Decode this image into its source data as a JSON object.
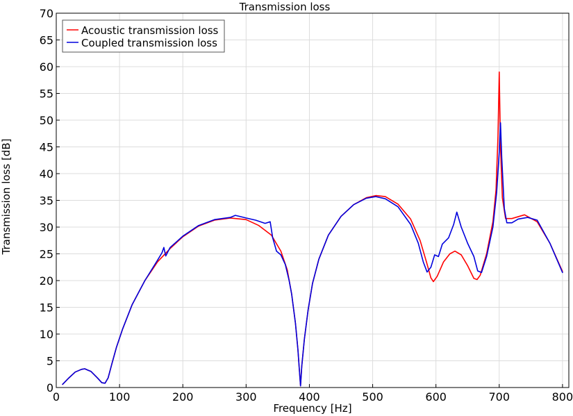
{
  "chart_data": {
    "type": "line",
    "title": "Transmission loss",
    "xlabel": "Frequency [Hz]",
    "ylabel": "Transmission loss [dB]",
    "xlim": [
      0,
      810
    ],
    "ylim": [
      0,
      70
    ],
    "xticks": [
      0,
      100,
      200,
      300,
      400,
      500,
      600,
      700,
      800
    ],
    "yticks": [
      0,
      5,
      10,
      15,
      20,
      25,
      30,
      35,
      40,
      45,
      50,
      55,
      60,
      65,
      70
    ],
    "grid": true,
    "legend_position": "top-left",
    "series": [
      {
        "name": "Acoustic transmission loss",
        "color": "#ff0000",
        "x": [
          10,
          20,
          30,
          40,
          45,
          55,
          65,
          72,
          77,
          82,
          88,
          95,
          105,
          120,
          140,
          160,
          180,
          200,
          225,
          250,
          275,
          300,
          320,
          340,
          355,
          365,
          372,
          378,
          382,
          384,
          386,
          388,
          392,
          398,
          405,
          415,
          430,
          450,
          470,
          490,
          505,
          520,
          540,
          560,
          575,
          585,
          592,
          596,
          602,
          612,
          622,
          630,
          640,
          650,
          660,
          665,
          670,
          680,
          690,
          695,
          698,
          700,
          702,
          705,
          710,
          720,
          740,
          760,
          780,
          800
        ],
        "y": [
          0.6,
          1.8,
          2.9,
          3.4,
          3.5,
          3.0,
          1.8,
          0.9,
          0.8,
          1.8,
          4.5,
          7.5,
          11.0,
          15.5,
          20.0,
          23.5,
          26.0,
          28.2,
          30.2,
          31.3,
          31.7,
          31.4,
          30.3,
          28.5,
          25.5,
          22.0,
          17.5,
          12.0,
          7.0,
          3.5,
          0.3,
          4.0,
          9.0,
          14.5,
          19.5,
          24.0,
          28.5,
          32.0,
          34.2,
          35.5,
          35.9,
          35.7,
          34.3,
          31.5,
          27.5,
          23.5,
          20.5,
          19.8,
          20.8,
          23.5,
          25.0,
          25.5,
          24.8,
          22.8,
          20.4,
          20.2,
          21.0,
          25.0,
          31.0,
          37.0,
          47.0,
          59.0,
          45.0,
          35.5,
          31.6,
          31.6,
          32.3,
          31.0,
          27.0,
          21.7
        ]
      },
      {
        "name": "Coupled transmission loss",
        "color": "#0000dd",
        "x": [
          10,
          20,
          30,
          40,
          45,
          55,
          65,
          72,
          77,
          82,
          88,
          95,
          105,
          120,
          140,
          160,
          167,
          170,
          173,
          180,
          200,
          225,
          250,
          275,
          283,
          290,
          300,
          315,
          330,
          338,
          342,
          348,
          355,
          362,
          368,
          372,
          378,
          382,
          384,
          386,
          388,
          392,
          398,
          405,
          415,
          430,
          450,
          470,
          490,
          505,
          520,
          540,
          560,
          572,
          580,
          586,
          592,
          598,
          604,
          610,
          620,
          628,
          633,
          640,
          650,
          660,
          666,
          672,
          680,
          690,
          696,
          700,
          702,
          704,
          708,
          712,
          720,
          730,
          745,
          760,
          780,
          800
        ],
        "y": [
          0.6,
          1.8,
          2.9,
          3.4,
          3.5,
          3.0,
          1.8,
          0.9,
          0.8,
          1.8,
          4.5,
          7.5,
          11.0,
          15.5,
          20.0,
          23.8,
          25.2,
          26.2,
          24.6,
          26.2,
          28.3,
          30.3,
          31.4,
          31.8,
          32.2,
          32.0,
          31.7,
          31.3,
          30.7,
          31.0,
          28.0,
          25.5,
          24.8,
          23.0,
          20.0,
          17.5,
          12.0,
          7.0,
          3.5,
          0.3,
          4.0,
          9.0,
          14.5,
          19.5,
          24.0,
          28.5,
          32.0,
          34.2,
          35.4,
          35.7,
          35.3,
          33.8,
          30.5,
          27.0,
          23.5,
          21.6,
          22.5,
          24.8,
          24.5,
          26.8,
          28.0,
          30.5,
          32.8,
          30.0,
          27.0,
          24.5,
          21.8,
          21.5,
          24.5,
          30.0,
          36.5,
          44.0,
          49.5,
          43.0,
          33.5,
          30.8,
          30.8,
          31.5,
          31.8,
          31.3,
          27.0,
          21.5
        ]
      }
    ]
  }
}
